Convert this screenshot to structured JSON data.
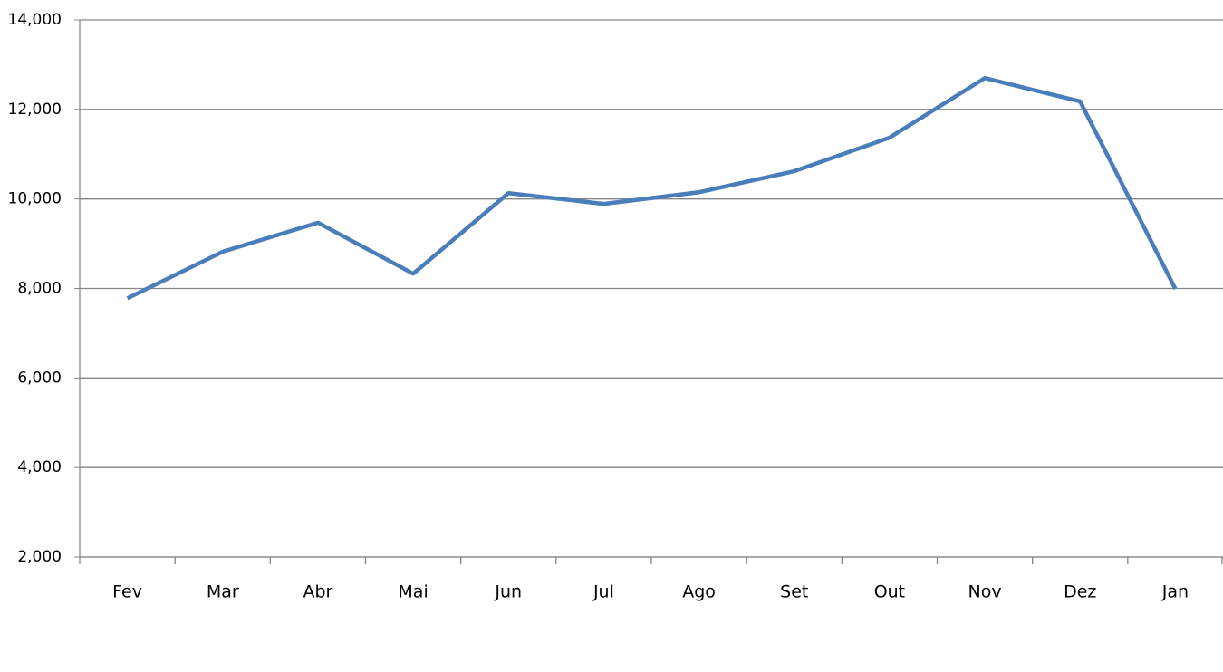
{
  "chart_data": {
    "type": "line",
    "categories": [
      "Fev",
      "Mar",
      "Abr",
      "Mai",
      "Jun",
      "Jul",
      "Ago",
      "Set",
      "Out",
      "Nov",
      "Dez",
      "Jan"
    ],
    "series": [
      {
        "color": "#4a7ebb",
        "values": [
          7780,
          8820,
          9470,
          8330,
          10130,
          9890,
          10150,
          10620,
          11370,
          12700,
          12180,
          7990
        ]
      }
    ],
    "ylim": [
      2000,
      14000
    ],
    "yticks": [
      {
        "value": 2000,
        "label": "2,000"
      },
      {
        "value": 4000,
        "label": "4,000"
      },
      {
        "value": 6000,
        "label": "6,000"
      },
      {
        "value": 8000,
        "label": "8,000"
      },
      {
        "value": 10000,
        "label": "10,000"
      },
      {
        "value": 12000,
        "label": "12,000"
      },
      {
        "value": 14000,
        "label": "14,000"
      }
    ],
    "grid": true
  }
}
